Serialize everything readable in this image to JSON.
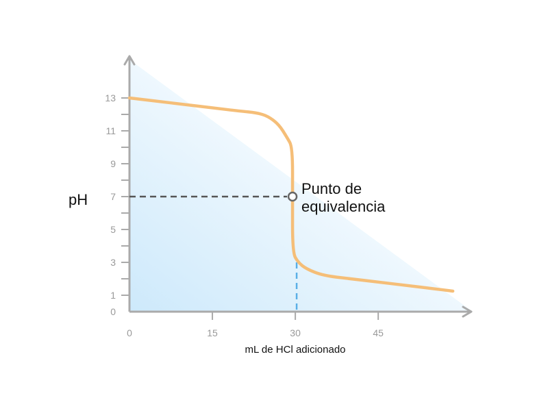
{
  "chart_data": {
    "type": "line",
    "xlabel": "mL de HCl adicionado",
    "ylabel": "pH",
    "xlim": [
      0,
      58
    ],
    "ylim": [
      0,
      15
    ],
    "xticks": [
      0,
      15,
      30,
      45
    ],
    "yticks_labeled": [
      0,
      1,
      3,
      5,
      7,
      9,
      11,
      13
    ],
    "grid": false,
    "series": [
      {
        "values": [
          [
            0,
            13.0
          ],
          [
            5,
            12.8
          ],
          [
            10,
            12.6
          ],
          [
            15,
            12.4
          ],
          [
            20,
            12.2
          ],
          [
            23,
            12.1
          ],
          [
            25,
            11.9
          ],
          [
            27,
            11.4
          ],
          [
            28.5,
            10.6
          ],
          [
            29.5,
            10.0
          ],
          [
            29.5,
            7.0
          ],
          [
            29.5,
            3.6
          ],
          [
            30.5,
            3.0
          ],
          [
            32,
            2.6
          ],
          [
            35,
            2.2
          ],
          [
            40,
            2.0
          ],
          [
            45,
            1.8
          ],
          [
            50,
            1.6
          ],
          [
            55,
            1.4
          ],
          [
            58.5,
            1.25
          ]
        ]
      }
    ],
    "annotation": {
      "lines": [
        "Punto de",
        "equivalencia"
      ],
      "x": 29.5,
      "y": 7
    },
    "colors": {
      "curve": "#f5be78",
      "axis": "#aaaaaa",
      "ref_h": "#555555",
      "ref_v": "#5aafe6",
      "fill": "#cde9fb"
    }
  }
}
